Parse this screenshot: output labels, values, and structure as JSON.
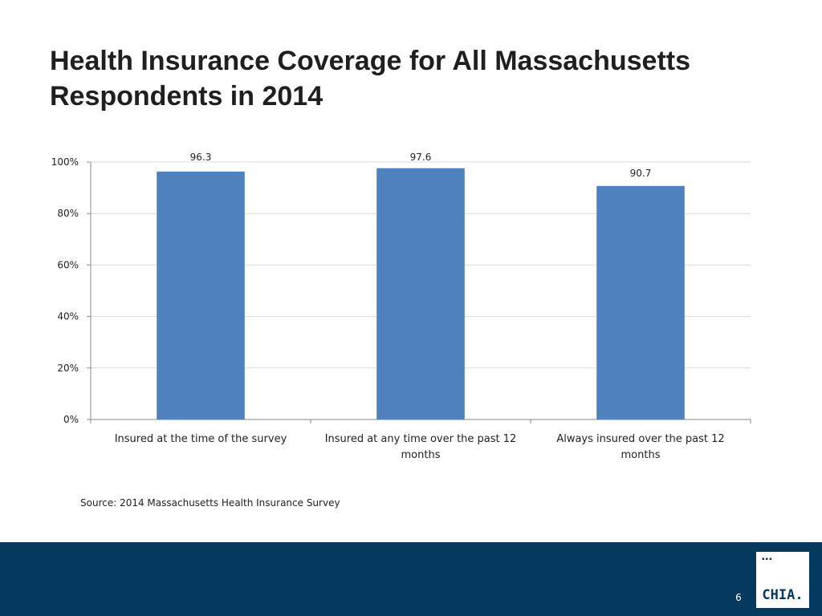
{
  "title": "Health Insurance Coverage for All Massachusetts Respondents in 2014",
  "source": "Source:  2014 Massachusetts Health Insurance Survey",
  "page_number": "6",
  "logo": {
    "dots": "▪▪▪",
    "text": "CHIA."
  },
  "colors": {
    "bar": "#4f81bd",
    "footer": "#053a5e",
    "grid": "#d9d9d9",
    "axis": "#888888"
  },
  "chart_data": {
    "type": "bar",
    "categories": [
      "Insured at the time of the survey",
      "Insured at any time over the past 12 months",
      "Always insured over the past 12 months"
    ],
    "values": [
      96.3,
      97.6,
      90.7
    ],
    "data_labels": [
      "96.3",
      "97.6",
      "90.7"
    ],
    "y_ticks": [
      0,
      20,
      40,
      60,
      80,
      100
    ],
    "y_tick_labels": [
      "0%",
      "20%",
      "40%",
      "60%",
      "80%",
      "100%"
    ],
    "ylim": [
      0,
      100
    ],
    "grid": true,
    "legend": "none"
  }
}
